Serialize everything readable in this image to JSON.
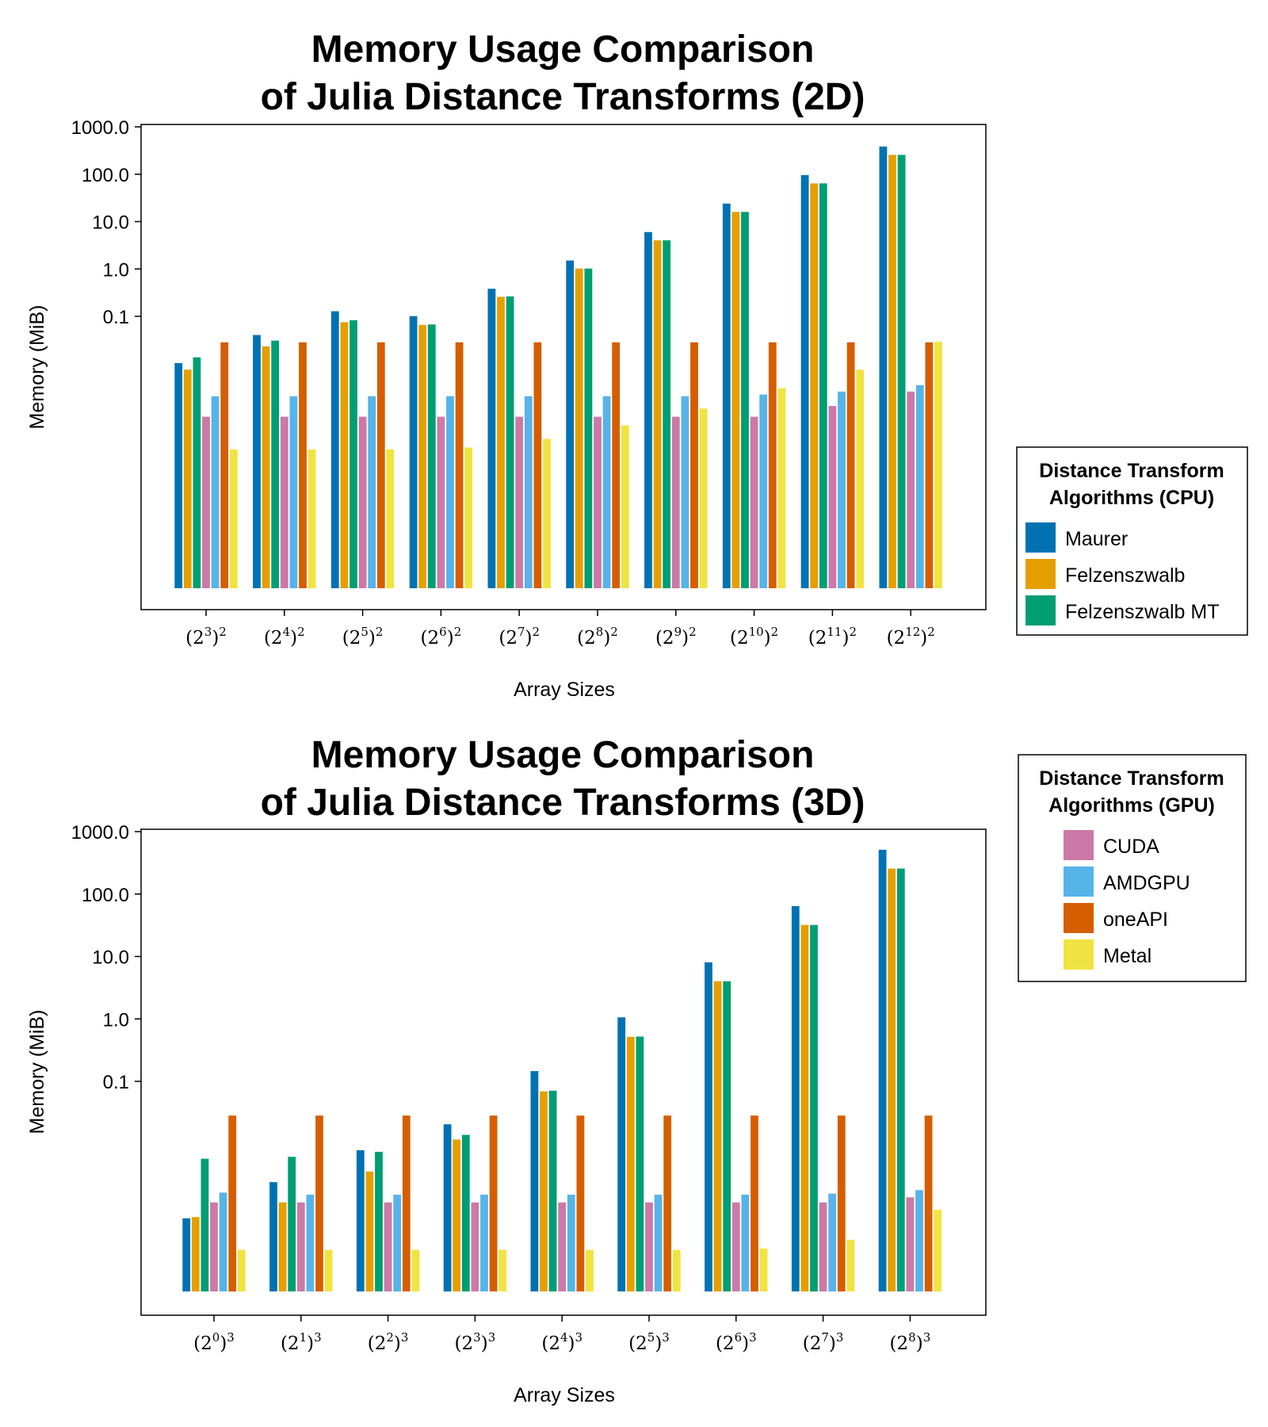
{
  "colors": {
    "maurer": "#0072b2",
    "felzenszwalb": "#e69f00",
    "felzenszwalb_mt": "#009e73",
    "cuda": "#cc79a7",
    "amdgpu": "#56b4e9",
    "oneapi": "#d55e00",
    "metal": "#f0e442"
  },
  "legend_cpu": {
    "title_line1": "Distance Transform",
    "title_line2": "Algorithms (CPU)",
    "items": [
      {
        "label": "Maurer",
        "color": "#0072b2"
      },
      {
        "label": "Felzenszwalb",
        "color": "#e69f00"
      },
      {
        "label": "Felzenszwalb MT",
        "color": "#009e73"
      }
    ]
  },
  "legend_gpu": {
    "title_line1": "Distance Transform",
    "title_line2": "Algorithms (GPU)",
    "items": [
      {
        "label": "CUDA",
        "color": "#cc79a7"
      },
      {
        "label": "AMDGPU",
        "color": "#56b4e9"
      },
      {
        "label": "oneAPI",
        "color": "#d55e00"
      },
      {
        "label": "Metal",
        "color": "#f0e442"
      }
    ]
  },
  "chart_data": [
    {
      "type": "bar",
      "title_line1": "Memory Usage Comparison",
      "title_line2": "of Julia Distance Transforms (2D)",
      "xlabel": "Array Sizes",
      "ylabel": "Memory (MiB)",
      "yscale": "log10",
      "ylim": [
        0.0001,
        1500
      ],
      "yticks": [
        0.1,
        1,
        10,
        100,
        1000
      ],
      "ytick_labels": [
        "0.1",
        "1.0",
        "10.0",
        "100.0",
        "1000.0"
      ],
      "categories": [
        {
          "base": "2",
          "exp": "3",
          "power": "2"
        },
        {
          "base": "2",
          "exp": "4",
          "power": "2"
        },
        {
          "base": "2",
          "exp": "5",
          "power": "2"
        },
        {
          "base": "2",
          "exp": "6",
          "power": "2"
        },
        {
          "base": "2",
          "exp": "7",
          "power": "2"
        },
        {
          "base": "2",
          "exp": "8",
          "power": "2"
        },
        {
          "base": "2",
          "exp": "9",
          "power": "2"
        },
        {
          "base": "2",
          "exp": "10",
          "power": "2"
        },
        {
          "base": "2",
          "exp": "11",
          "power": "2"
        },
        {
          "base": "2",
          "exp": "12",
          "power": "2"
        }
      ],
      "series": [
        {
          "name": "Maurer",
          "color": "#0072b2",
          "values": [
            0.0103,
            0.0403,
            0.128,
            0.101,
            0.382,
            1.51,
            6.01,
            24.0,
            96.0,
            384.0
          ]
        },
        {
          "name": "Felzenszwalb",
          "color": "#e69f00",
          "values": [
            0.0075,
            0.0232,
            0.0752,
            0.066,
            0.258,
            1.02,
            4.02,
            16.0,
            64.0,
            256.0
          ]
        },
        {
          "name": "Felzenszwalb MT",
          "color": "#009e73",
          "values": [
            0.0136,
            0.0307,
            0.0827,
            0.0672,
            0.263,
            1.02,
            4.02,
            16.0,
            64.0,
            256.0
          ]
        },
        {
          "name": "CUDA",
          "color": "#cc79a7",
          "values": [
            0.00076,
            0.00076,
            0.00076,
            0.00076,
            0.00076,
            0.00076,
            0.00076,
            0.00076,
            0.00128,
            0.00258
          ]
        },
        {
          "name": "AMDGPU",
          "color": "#56b4e9",
          "values": [
            0.00206,
            0.00206,
            0.00206,
            0.00206,
            0.00206,
            0.00206,
            0.00206,
            0.00223,
            0.00258,
            0.00352
          ]
        },
        {
          "name": "oneAPI",
          "color": "#d55e00",
          "values": [
            0.0283,
            0.0283,
            0.0283,
            0.0283,
            0.0283,
            0.0283,
            0.0283,
            0.0283,
            0.0283,
            0.0283
          ]
        },
        {
          "name": "Metal",
          "color": "#f0e442",
          "values": [
            0.000155,
            0.000155,
            0.000155,
            0.00017,
            0.00026,
            0.0005,
            0.00113,
            0.00303,
            0.00747,
            0.0289
          ]
        }
      ]
    },
    {
      "type": "bar",
      "title_line1": "Memory Usage Comparison",
      "title_line2": "of Julia Distance Transforms (3D)",
      "xlabel": "Array Sizes",
      "ylabel": "Memory (MiB)",
      "yscale": "log10",
      "ylim": [
        0.0001,
        1500
      ],
      "yticks": [
        0.1,
        1,
        10,
        100,
        1000
      ],
      "ytick_labels": [
        "0.1",
        "1.0",
        "10.0",
        "100.0",
        "1000.0"
      ],
      "categories": [
        {
          "base": "2",
          "exp": "0",
          "power": "3"
        },
        {
          "base": "2",
          "exp": "1",
          "power": "3"
        },
        {
          "base": "2",
          "exp": "2",
          "power": "3"
        },
        {
          "base": "2",
          "exp": "3",
          "power": "3"
        },
        {
          "base": "2",
          "exp": "4",
          "power": "3"
        },
        {
          "base": "2",
          "exp": "5",
          "power": "3"
        },
        {
          "base": "2",
          "exp": "6",
          "power": "3"
        },
        {
          "base": "2",
          "exp": "7",
          "power": "3"
        },
        {
          "base": "2",
          "exp": "8",
          "power": "3"
        }
      ],
      "series": [
        {
          "name": "Maurer",
          "color": "#0072b2",
          "values": [
            0.00064,
            0.00243,
            0.00791,
            0.0205,
            0.146,
            1.06,
            8.06,
            64.0,
            512.0
          ]
        },
        {
          "name": "Felzenszwalb",
          "color": "#e69f00",
          "values": [
            0.00067,
            0.00115,
            0.00359,
            0.0117,
            0.069,
            0.516,
            4.02,
            32.0,
            256.0
          ]
        },
        {
          "name": "Felzenszwalb MT",
          "color": "#009e73",
          "values": [
            0.00576,
            0.00618,
            0.00743,
            0.0139,
            0.0708,
            0.522,
            4.02,
            32.0,
            256.0
          ]
        },
        {
          "name": "CUDA",
          "color": "#cc79a7",
          "values": [
            0.00115,
            0.00115,
            0.00115,
            0.00115,
            0.00115,
            0.00115,
            0.00115,
            0.00115,
            0.00139
          ]
        },
        {
          "name": "AMDGPU",
          "color": "#56b4e9",
          "values": [
            0.00165,
            0.00153,
            0.00153,
            0.00153,
            0.00153,
            0.00153,
            0.00153,
            0.00159,
            0.00181
          ]
        },
        {
          "name": "oneAPI",
          "color": "#d55e00",
          "values": [
            0.0283,
            0.0283,
            0.0283,
            0.0283,
            0.0283,
            0.0283,
            0.0283,
            0.0283,
            0.0283
          ]
        },
        {
          "name": "Metal",
          "color": "#f0e442",
          "values": [
            0.0002,
            0.0002,
            0.0002,
            0.0002,
            0.0002,
            0.0002,
            0.00021,
            0.00029,
            0.00088
          ]
        }
      ]
    }
  ]
}
